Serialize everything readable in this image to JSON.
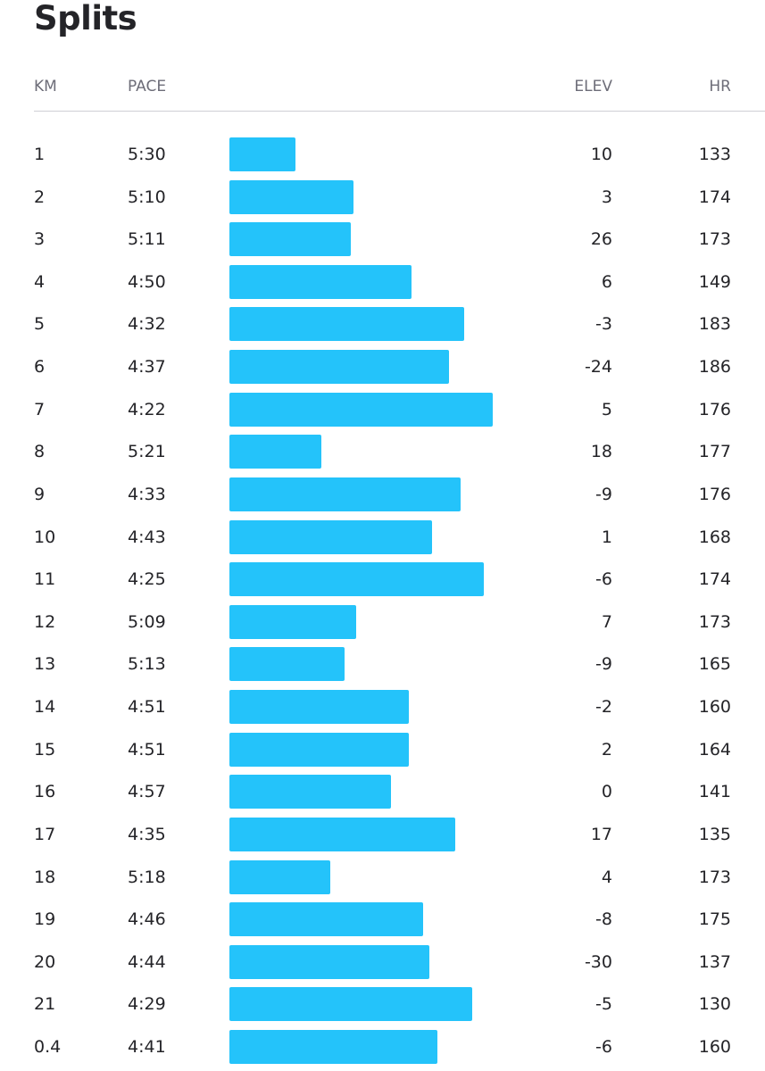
{
  "header": {
    "title": "Splits",
    "columns": [
      "KM",
      "PACE",
      "ELEV",
      "HR"
    ]
  },
  "table": {
    "rows": [
      {
        "km": 1,
        "pace": "5:30",
        "elev": 10,
        "hr": 133
      },
      {
        "km": 2,
        "pace": "5:10",
        "elev": 3,
        "hr": 174
      },
      {
        "km": 3,
        "pace": "5:11",
        "elev": 26,
        "hr": 173
      },
      {
        "km": 4,
        "pace": "4:50",
        "elev": 6,
        "hr": 149
      },
      {
        "km": 5,
        "pace": "4:32",
        "elev": -3,
        "hr": 183
      },
      {
        "km": 6,
        "pace": "4:37",
        "elev": -24,
        "hr": 186
      },
      {
        "km": 7,
        "pace": "4:22",
        "elev": 5,
        "hr": 176
      },
      {
        "km": 8,
        "pace": "5:21",
        "elev": 18,
        "hr": 177
      },
      {
        "km": 9,
        "pace": "4:33",
        "elev": -9,
        "hr": 176
      },
      {
        "km": 10,
        "pace": "4:43",
        "elev": 1,
        "hr": 168
      },
      {
        "km": 11,
        "pace": "4:25",
        "elev": -6,
        "hr": 174
      },
      {
        "km": 12,
        "pace": "5:09",
        "elev": 7,
        "hr": 173
      },
      {
        "km": 13,
        "pace": "5:13",
        "elev": -9,
        "hr": 165
      },
      {
        "km": 14,
        "pace": "4:51",
        "elev": -2,
        "hr": 160
      },
      {
        "km": 15,
        "pace": "4:51",
        "elev": 2,
        "hr": 164
      },
      {
        "km": 16,
        "pace": "4:57",
        "elev": 0,
        "hr": 141
      },
      {
        "km": 17,
        "pace": "4:35",
        "elev": 17,
        "hr": 135
      },
      {
        "km": 18,
        "pace": "5:18",
        "elev": 4,
        "hr": 173
      },
      {
        "km": 19,
        "pace": "4:46",
        "elev": -8,
        "hr": 175
      },
      {
        "km": 20,
        "pace": "4:44",
        "elev": -30,
        "hr": 137
      },
      {
        "km": 21,
        "pace": "4:29",
        "elev": -5,
        "hr": 130
      },
      {
        "km": 0.4,
        "pace": "4:41",
        "elev": -6,
        "hr": 160
      }
    ]
  }
}
